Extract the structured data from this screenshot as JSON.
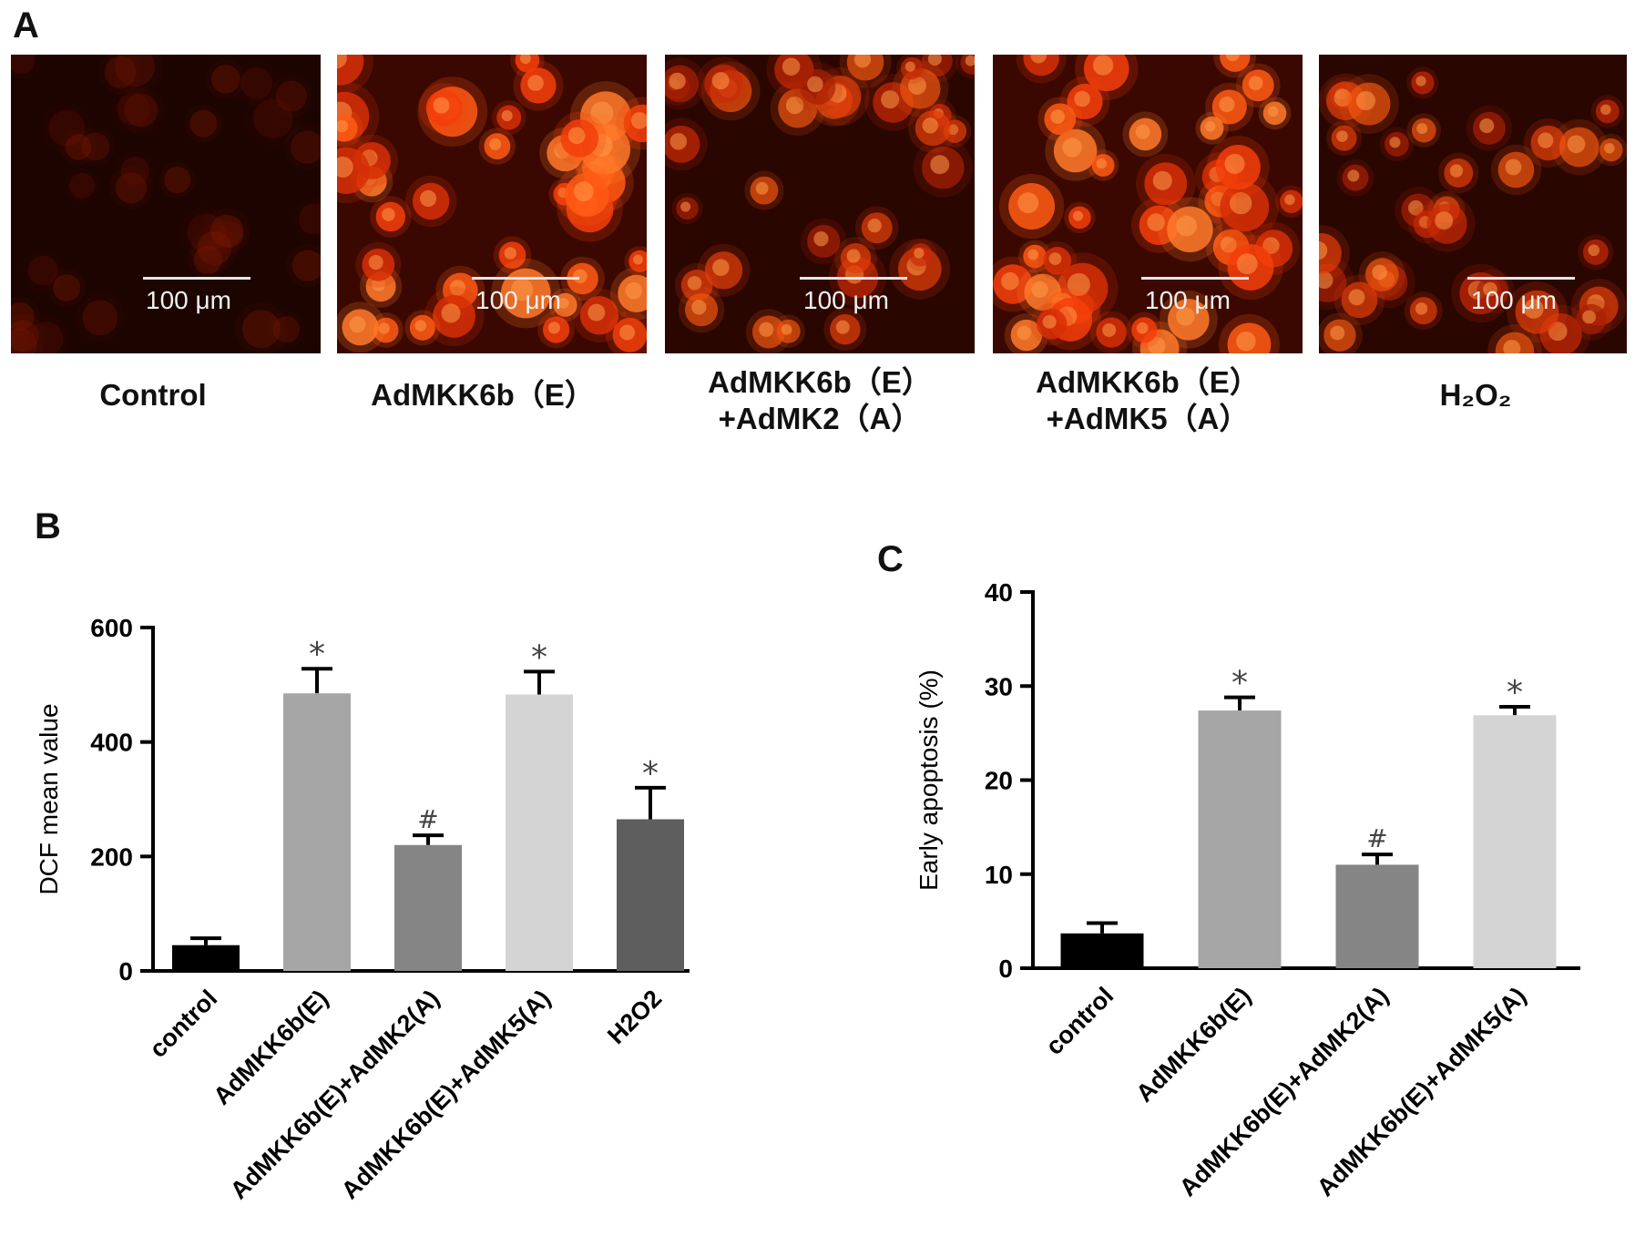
{
  "panels": {
    "a": "A",
    "b": "B",
    "c": "C"
  },
  "images": [
    {
      "caption_lines": [
        "Control"
      ],
      "scale_label": "100 μm",
      "intensity": "dim"
    },
    {
      "caption_lines": [
        "AdMKK6b（E）"
      ],
      "scale_label": "100 μm",
      "intensity": "bright"
    },
    {
      "caption_lines": [
        "AdMKK6b（E）",
        "+AdMK2（A）"
      ],
      "scale_label": "100 μm",
      "intensity": "medium"
    },
    {
      "caption_lines": [
        "AdMKK6b（E）",
        "+AdMK5（A）"
      ],
      "scale_label": "100 μm",
      "intensity": "bright"
    },
    {
      "caption_lines": [
        "H₂O₂"
      ],
      "scale_label": "100 μm",
      "intensity": "medium"
    }
  ],
  "chart_data": [
    {
      "panel": "B",
      "type": "bar",
      "ylabel": "DCF mean value",
      "ylim": [
        0,
        600
      ],
      "yticks": [
        0,
        200,
        400,
        600
      ],
      "categories": [
        "control",
        "AdMKK6b(E)",
        "AdMKK6b(E)+AdMK2(A)",
        "AdMKK6b(E)+AdMK5(A)",
        "H2O2"
      ],
      "values": [
        45,
        485,
        220,
        483,
        265
      ],
      "errors": [
        12,
        43,
        17,
        40,
        55
      ],
      "annotations": [
        "",
        "*",
        "#",
        "*",
        "*"
      ],
      "colors": [
        "#000000",
        "#a6a6a6",
        "#858585",
        "#d4d4d4",
        "#5e5e5e"
      ]
    },
    {
      "panel": "C",
      "type": "bar",
      "ylabel": "Early apoptosis (%)",
      "ylim": [
        0,
        40
      ],
      "yticks": [
        0,
        10,
        20,
        30,
        40
      ],
      "categories": [
        "control",
        "AdMKK6b(E)",
        "AdMKK6b(E)+AdMK2(A)",
        "AdMKK6b(E)+AdMK5(A)"
      ],
      "values": [
        3.7,
        27.4,
        11.0,
        26.9
      ],
      "errors": [
        1.1,
        1.4,
        1.1,
        0.9
      ],
      "annotations": [
        "",
        "*",
        "#",
        "*"
      ],
      "colors": [
        "#000000",
        "#a6a6a6",
        "#858585",
        "#d4d4d4"
      ]
    }
  ]
}
